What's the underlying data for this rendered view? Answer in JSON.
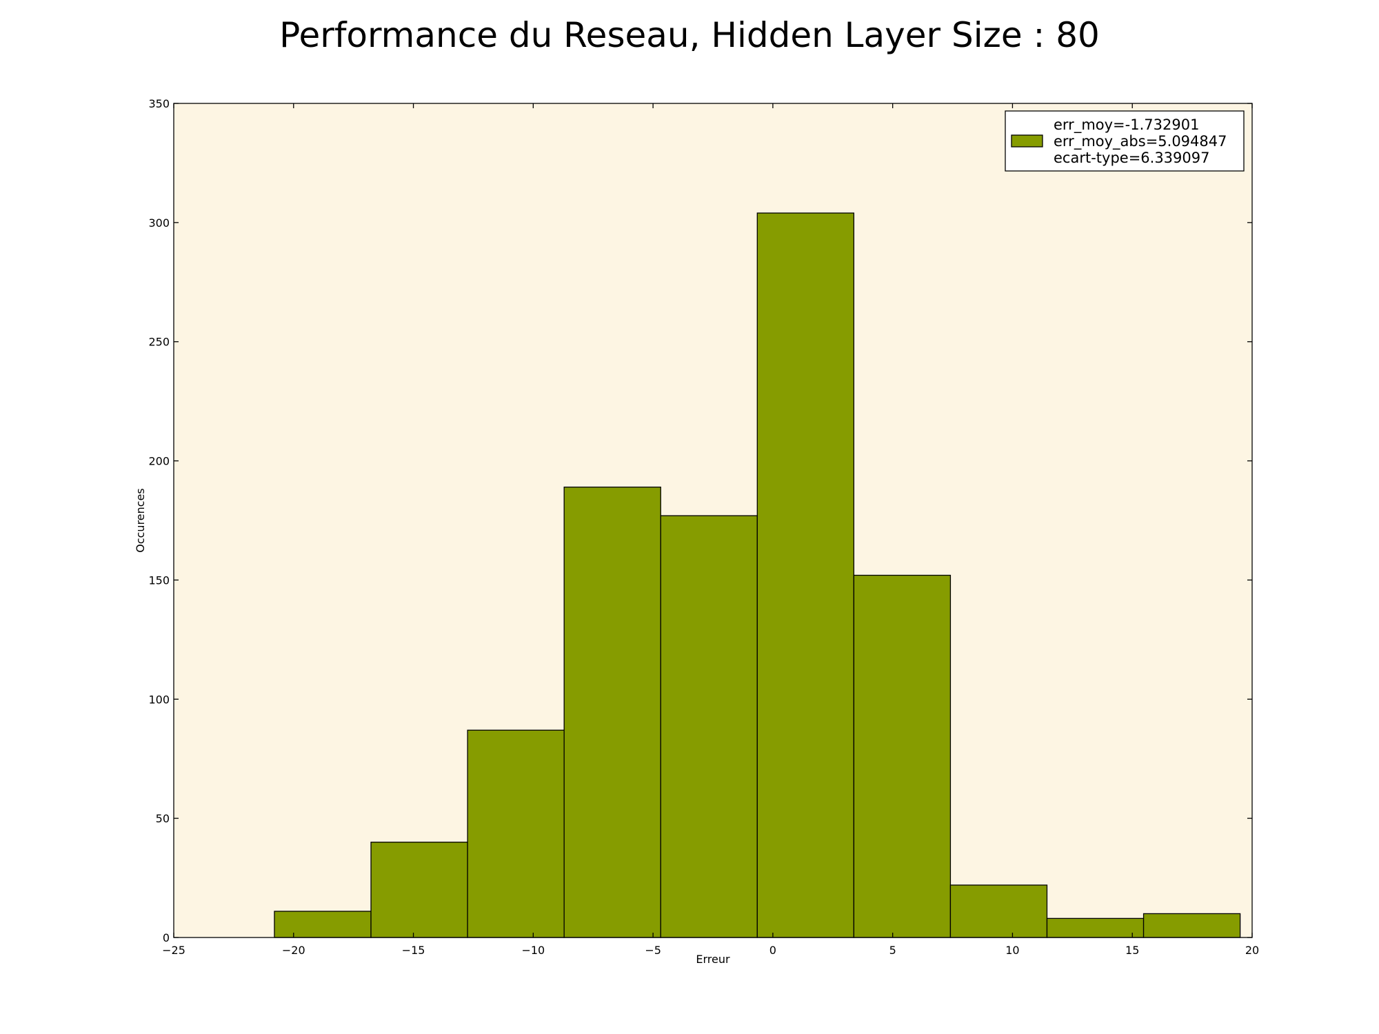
{
  "chart_data": {
    "type": "bar",
    "subtype": "histogram",
    "title": "Performance du Reseau, Hidden Layer Size : 80",
    "xlabel": "Erreur",
    "ylabel": "Occurences",
    "xlim": [
      -25,
      20
    ],
    "ylim": [
      0,
      350
    ],
    "xticks": [
      -25,
      -20,
      -15,
      -10,
      -5,
      0,
      5,
      10,
      15,
      20
    ],
    "xtick_labels": [
      "−25",
      "−20",
      "−15",
      "−10",
      "−5",
      "0",
      "5",
      "10",
      "15",
      "20"
    ],
    "yticks": [
      0,
      50,
      100,
      150,
      200,
      250,
      300,
      350
    ],
    "ytick_labels": [
      "0",
      "50",
      "100",
      "150",
      "200",
      "250",
      "300",
      "350"
    ],
    "bin_edges": [
      -20.8,
      -16.77,
      -12.74,
      -8.71,
      -4.68,
      -0.65,
      3.38,
      7.41,
      11.44,
      15.47,
      19.5
    ],
    "values": [
      11,
      40,
      87,
      189,
      177,
      304,
      152,
      22,
      8,
      10
    ],
    "bar_color": "#869c00",
    "plot_background": "#fdf5e3",
    "grid": false,
    "legend": {
      "placement": "top-right",
      "entries": [
        "err_moy=-1.732901",
        "err_moy_abs=5.094847",
        "ecart-type=6.339097"
      ]
    }
  }
}
